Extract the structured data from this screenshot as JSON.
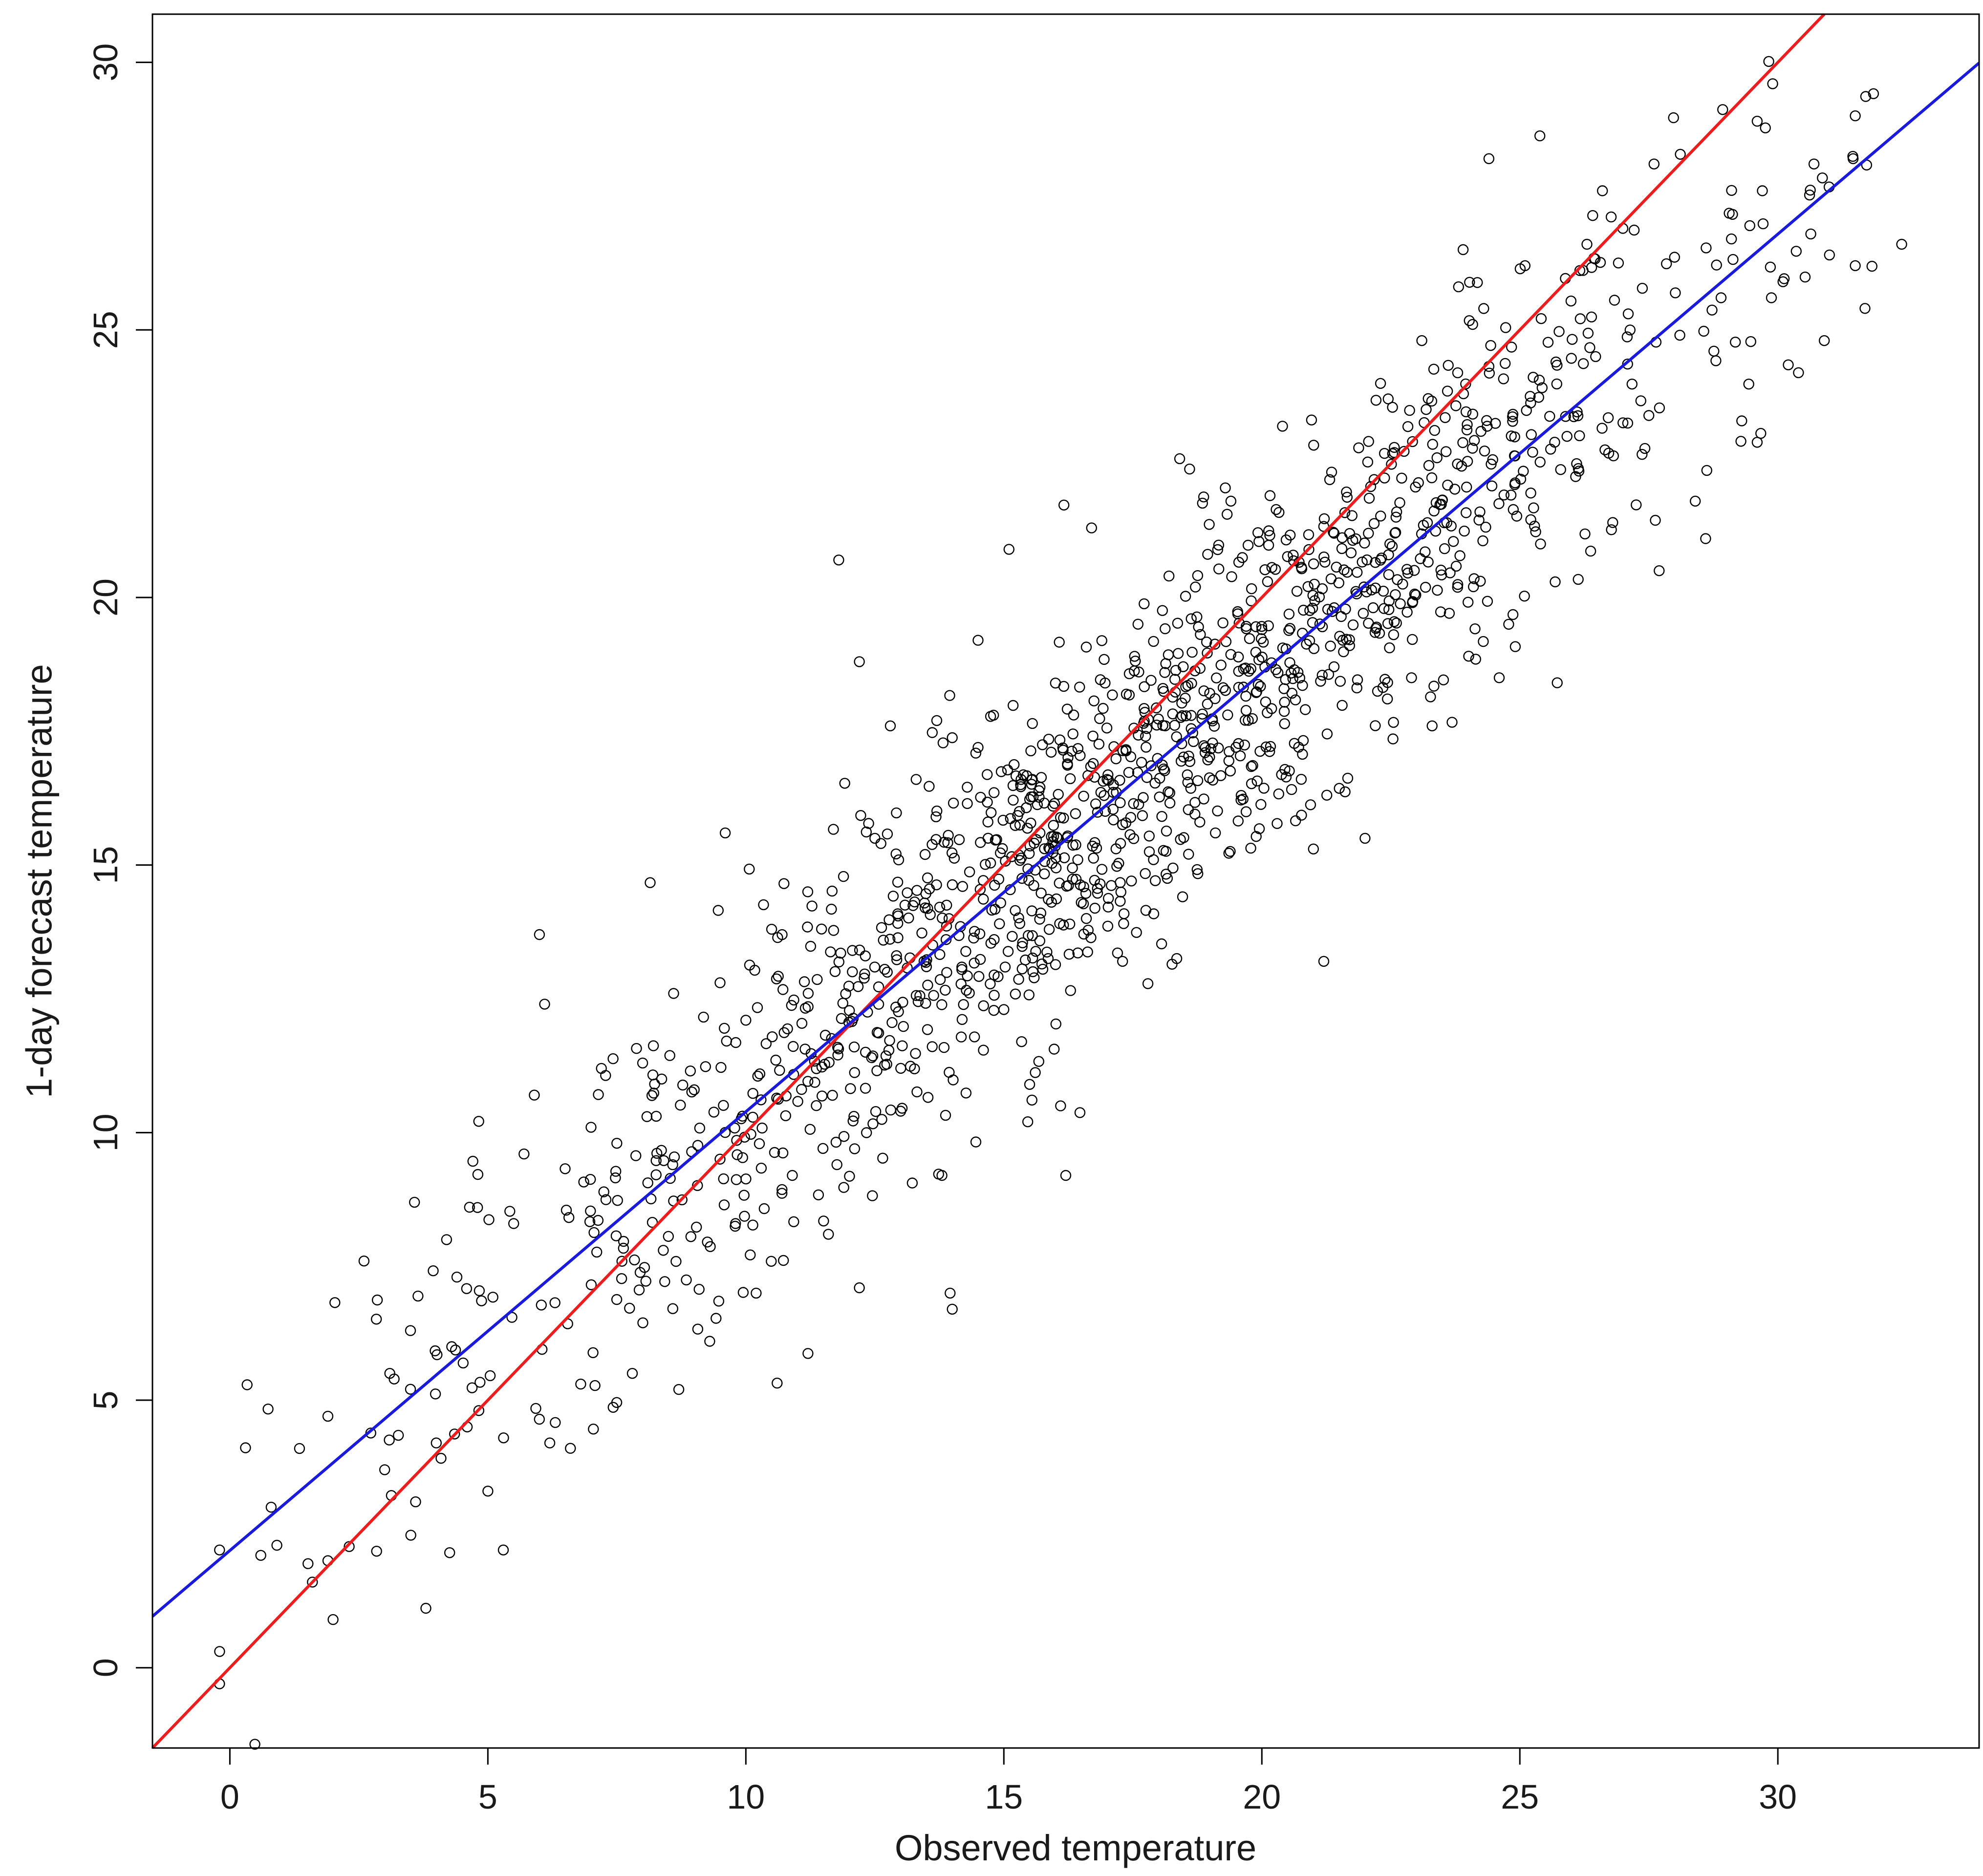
{
  "chart_data": {
    "type": "scatter",
    "title": "",
    "xlabel": "Observed temperature",
    "ylabel": "1-day forecast temperature",
    "xlim": [
      -1.5,
      33.9
    ],
    "ylim": [
      -1.5,
      30.9
    ],
    "x_ticks": [
      0,
      5,
      10,
      15,
      20,
      25,
      30
    ],
    "y_ticks": [
      0,
      5,
      10,
      15,
      20,
      25,
      30
    ],
    "x_tick_labels": [
      "0",
      "5",
      "10",
      "15",
      "20",
      "25",
      "30"
    ],
    "y_tick_labels": [
      "0",
      "5",
      "10",
      "15",
      "20",
      "25",
      "30"
    ],
    "grid": false,
    "legend": "none",
    "series": [
      {
        "kind": "points",
        "marker": "open-circle",
        "color": "#000000",
        "approx_count": 1500,
        "sample_points": [
          [
            -0.2,
            2.2
          ],
          [
            -0.2,
            -0.3
          ],
          [
            0.6,
            2.1
          ],
          [
            0.8,
            3.0
          ],
          [
            1.6,
            1.6
          ],
          [
            1.9,
            2.0
          ],
          [
            1.9,
            4.7
          ],
          [
            2.0,
            0.9
          ],
          [
            2.6,
            7.6
          ],
          [
            3.0,
            3.7
          ],
          [
            3.1,
            5.5
          ],
          [
            3.5,
            6.3
          ],
          [
            3.6,
            3.1
          ],
          [
            4.0,
            4.2
          ],
          [
            4.2,
            8.0
          ],
          [
            4.3,
            6.0
          ],
          [
            4.4,
            7.3
          ],
          [
            4.6,
            4.5
          ],
          [
            4.8,
            8.6
          ],
          [
            5.0,
            3.3
          ],
          [
            5.3,
            2.2
          ],
          [
            5.5,
            8.3
          ],
          [
            5.7,
            9.6
          ],
          [
            5.9,
            10.7
          ],
          [
            6.0,
            13.7
          ],
          [
            6.1,
            12.4
          ],
          [
            6.2,
            4.2
          ],
          [
            6.6,
            4.1
          ],
          [
            6.8,
            5.3
          ],
          [
            7.0,
            10.1
          ],
          [
            7.2,
            11.2
          ],
          [
            7.5,
            9.8
          ],
          [
            7.8,
            5.5
          ],
          [
            8.0,
            11.3
          ],
          [
            8.4,
            7.8
          ],
          [
            8.6,
            12.6
          ],
          [
            8.7,
            5.2
          ],
          [
            9.0,
            10.8
          ],
          [
            9.3,
            6.1
          ],
          [
            9.5,
            12.8
          ],
          [
            9.6,
            15.6
          ],
          [
            9.8,
            8.3
          ],
          [
            10.0,
            12.1
          ],
          [
            10.2,
            7.0
          ],
          [
            10.5,
            13.8
          ],
          [
            10.9,
            9.2
          ],
          [
            11.2,
            14.5
          ],
          [
            11.6,
            8.1
          ],
          [
            11.8,
            20.7
          ],
          [
            12.1,
            11.6
          ],
          [
            12.2,
            18.8
          ],
          [
            12.2,
            7.1
          ],
          [
            12.5,
            15.5
          ],
          [
            12.8,
            17.6
          ],
          [
            13.0,
            10.4
          ],
          [
            13.3,
            16.6
          ],
          [
            13.5,
            13.1
          ],
          [
            13.7,
            17.7
          ],
          [
            13.8,
            9.2
          ],
          [
            14.0,
            6.7
          ],
          [
            14.2,
            14.6
          ],
          [
            14.5,
            19.2
          ],
          [
            14.8,
            17.8
          ],
          [
            15.0,
            12.3
          ],
          [
            15.1,
            20.9
          ],
          [
            15.3,
            16.0
          ],
          [
            15.5,
            10.9
          ],
          [
            15.7,
            15.6
          ],
          [
            16.0,
            18.4
          ],
          [
            16.1,
            10.5
          ],
          [
            16.2,
            9.2
          ],
          [
            16.5,
            14.3
          ],
          [
            16.7,
            21.3
          ],
          [
            17.0,
            16.6
          ],
          [
            17.3,
            13.2
          ],
          [
            17.6,
            19.5
          ],
          [
            17.9,
            15.1
          ],
          [
            18.2,
            20.4
          ],
          [
            18.6,
            22.4
          ],
          [
            18.9,
            17.1
          ],
          [
            19.1,
            15.6
          ],
          [
            19.4,
            21.8
          ],
          [
            19.6,
            16.3
          ],
          [
            20.0,
            19.4
          ],
          [
            20.4,
            23.2
          ],
          [
            20.7,
            18.6
          ],
          [
            21.0,
            15.3
          ],
          [
            21.2,
            13.2
          ],
          [
            21.4,
            21.2
          ],
          [
            21.7,
            19.1
          ],
          [
            22.0,
            15.5
          ],
          [
            22.3,
            24.0
          ],
          [
            22.6,
            21.5
          ],
          [
            22.9,
            18.5
          ],
          [
            23.1,
            24.8
          ],
          [
            23.3,
            17.6
          ],
          [
            23.6,
            22.1
          ],
          [
            23.9,
            26.5
          ],
          [
            24.1,
            20.2
          ],
          [
            24.3,
            25.4
          ],
          [
            24.4,
            28.2
          ],
          [
            24.6,
            18.5
          ],
          [
            24.9,
            23.0
          ],
          [
            25.1,
            26.2
          ],
          [
            25.4,
            21.0
          ],
          [
            25.7,
            24.4
          ],
          [
            26.1,
            22.5
          ],
          [
            26.3,
            26.6
          ],
          [
            26.6,
            27.6
          ],
          [
            26.8,
            21.4
          ],
          [
            27.1,
            25.3
          ],
          [
            27.5,
            23.4
          ],
          [
            27.6,
            28.1
          ],
          [
            27.7,
            20.5
          ],
          [
            28.1,
            24.9
          ],
          [
            28.4,
            21.8
          ],
          [
            28.6,
            21.1
          ],
          [
            28.9,
            25.6
          ],
          [
            29.1,
            26.7
          ],
          [
            29.3,
            23.3
          ],
          [
            29.6,
            22.9
          ],
          [
            29.6,
            28.9
          ],
          [
            29.7,
            27.6
          ],
          [
            29.9,
            29.6
          ],
          [
            30.1,
            25.9
          ],
          [
            30.4,
            24.2
          ],
          [
            30.7,
            28.1
          ],
          [
            30.9,
            24.8
          ],
          [
            31.0,
            26.4
          ],
          [
            31.5,
            29.0
          ],
          [
            31.5,
            26.2
          ],
          [
            32.4,
            26.6
          ]
        ]
      },
      {
        "kind": "line",
        "color": "#ee1c1c",
        "intercept": 0,
        "slope": 1
      },
      {
        "kind": "line",
        "color": "#1a1adf",
        "intercept": 2.19,
        "slope": 0.82
      }
    ]
  }
}
